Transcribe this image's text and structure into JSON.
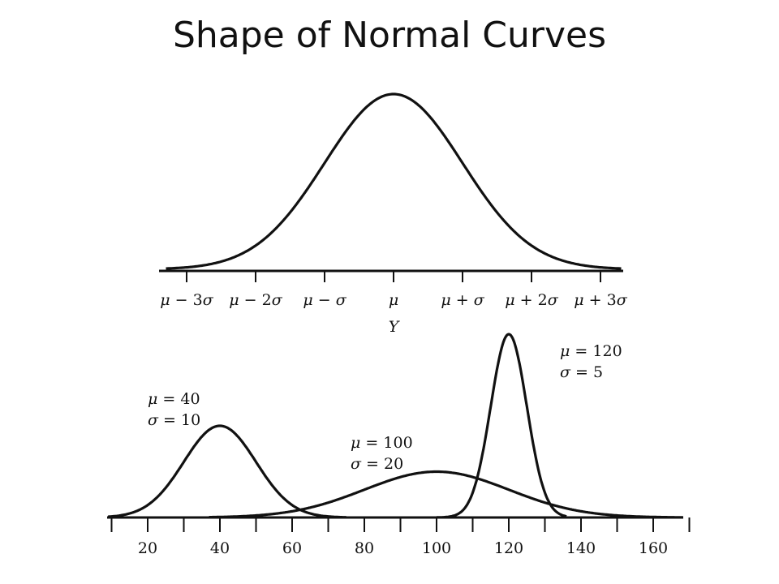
{
  "slide": {
    "title": "Shape of Normal Curves"
  },
  "chart_data": [
    {
      "type": "line",
      "title": "",
      "xlabel": "Y",
      "ylabel": "",
      "grid": false,
      "x_units": "standard deviations from the mean",
      "tick_labels": [
        "μ − 3σ",
        "μ − 2σ",
        "μ − σ",
        "μ",
        "μ + σ",
        "μ + 2σ",
        "μ + 3σ"
      ],
      "series": [
        {
          "mu": 0,
          "sigma": 1
        }
      ],
      "xlim": [
        -3.3,
        3.3
      ]
    },
    {
      "type": "line",
      "title": "",
      "xlabel": "",
      "ylabel": "",
      "grid": false,
      "xlim": [
        10,
        170
      ],
      "categories": [
        20,
        40,
        60,
        80,
        100,
        120,
        140,
        160
      ],
      "minor_ticks": [
        10,
        30,
        50,
        70,
        90,
        110,
        130,
        150,
        170
      ],
      "series": [
        {
          "mu": 40,
          "sigma": 10,
          "mu_label": "μ = 40",
          "sigma_label": "σ = 10"
        },
        {
          "mu": 100,
          "sigma": 20,
          "mu_label": "μ = 100",
          "sigma_label": "σ = 20"
        },
        {
          "mu": 120,
          "sigma": 5,
          "mu_label": "μ = 120",
          "sigma_label": "σ = 5"
        }
      ]
    }
  ]
}
